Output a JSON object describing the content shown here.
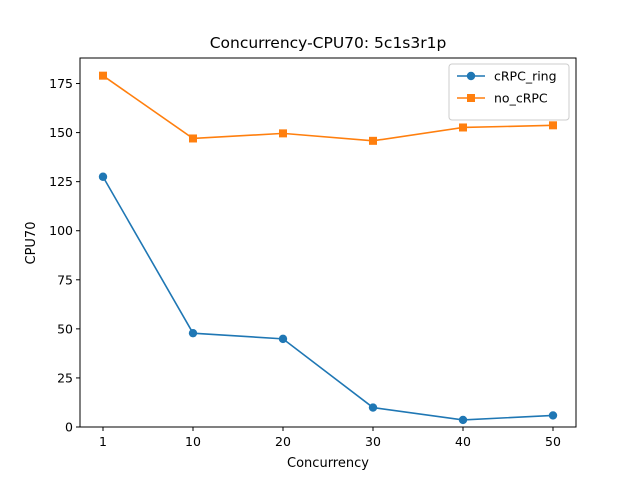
{
  "chart_data": {
    "type": "line",
    "title": "Concurrency-CPU70: 5c1s3r1p",
    "xlabel": "Concurrency",
    "ylabel": "CPU70",
    "categories": [
      "1",
      "10",
      "20",
      "30",
      "40",
      "50"
    ],
    "ylim": [
      0,
      188
    ],
    "yticks": [
      0,
      25,
      50,
      75,
      100,
      125,
      150,
      175
    ],
    "grid": false,
    "legend_position": "top-right",
    "series": [
      {
        "name": "cRPC_ring",
        "color": "#1f77b4",
        "marker": "circle",
        "values": [
          127.5,
          47.8,
          44.9,
          9.9,
          3.6,
          5.9
        ]
      },
      {
        "name": "no_cRPC",
        "color": "#ff7f0e",
        "marker": "square",
        "values": [
          179,
          147,
          149.6,
          145.8,
          152.6,
          153.7
        ]
      }
    ]
  }
}
